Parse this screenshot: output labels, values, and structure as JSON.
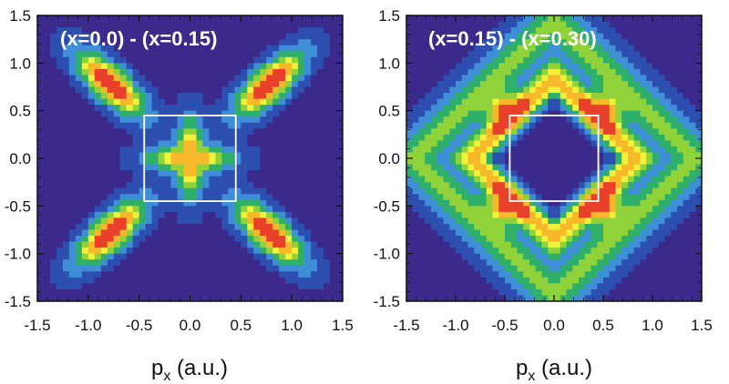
{
  "chart_data": [
    {
      "type": "heatmap",
      "panel_label": "(x=0.0) - (x=0.15)",
      "xlabel": "p_x (a.u.)",
      "xlabel_main": "p",
      "xlabel_sub": "x",
      "xlabel_unit": " (a.u.)",
      "ylabel": "",
      "xlim": [
        -1.5,
        1.5
      ],
      "ylim": [
        -1.5,
        1.5
      ],
      "x_ticks": [
        "-1.5",
        "-1.0",
        "-0.5",
        "0.0",
        "0.5",
        "1.0",
        "1.5"
      ],
      "y_ticks": [
        "1.5",
        "1.0",
        "0.5",
        "0.0",
        "-0.5",
        "-1.0",
        "-1.5"
      ],
      "tick_values": [
        -1.5,
        -1.0,
        -0.5,
        0.0,
        0.5,
        1.0,
        1.5
      ],
      "colormap": [
        "#3b2a8c",
        "#2d4fb0",
        "#3f8fd8",
        "#2fb06a",
        "#8fd23a",
        "#f2f23a",
        "#f7b82a",
        "#e8402a"
      ],
      "square_box": [
        -0.45,
        0.45,
        -0.45,
        0.45
      ],
      "features": [
        {
          "type": "lobe",
          "x": 0.78,
          "y": 0.78,
          "intensity": 0.95
        },
        {
          "type": "lobe",
          "x": -0.78,
          "y": 0.78,
          "intensity": 0.95
        },
        {
          "type": "lobe",
          "x": 0.78,
          "y": -0.78,
          "intensity": 0.95
        },
        {
          "type": "lobe",
          "x": -0.78,
          "y": -0.78,
          "intensity": 0.95
        },
        {
          "type": "center_cross",
          "x": 0.0,
          "y": 0.0,
          "intensity": 0.8
        }
      ]
    },
    {
      "type": "heatmap",
      "panel_label": "(x=0.15) - (x=0.30)",
      "xlabel": "p_x (a.u.)",
      "xlabel_main": "p",
      "xlabel_sub": "x",
      "xlabel_unit": " (a.u.)",
      "ylabel": "",
      "xlim": [
        -1.5,
        1.5
      ],
      "ylim": [
        -1.5,
        1.5
      ],
      "x_ticks": [
        "-1.5",
        "-1.0",
        "-0.5",
        "0.0",
        "0.5",
        "1.0",
        "1.5"
      ],
      "y_ticks": [
        "1.5",
        "1.0",
        "0.5",
        "0.0",
        "-0.5",
        "-1.0",
        "-1.5"
      ],
      "tick_values": [
        -1.5,
        -1.0,
        -0.5,
        0.0,
        0.5,
        1.0,
        1.5
      ],
      "colormap": [
        "#3b2a8c",
        "#2d4fb0",
        "#3f8fd8",
        "#2fb06a",
        "#8fd23a",
        "#f2f23a",
        "#f7b82a",
        "#e8402a"
      ],
      "square_box": [
        -0.45,
        0.45,
        -0.45,
        0.45
      ],
      "features": [
        {
          "type": "diamond_ring",
          "x": 0.0,
          "y": 0.0,
          "radius": 0.85,
          "intensity": 0.75
        },
        {
          "type": "hotspot",
          "x": 0.5,
          "y": 0.5,
          "intensity": 0.98
        },
        {
          "type": "hotspot",
          "x": -0.5,
          "y": 0.5,
          "intensity": 0.98
        },
        {
          "type": "hotspot",
          "x": 0.5,
          "y": -0.5,
          "intensity": 0.98
        },
        {
          "type": "hotspot",
          "x": -0.5,
          "y": -0.5,
          "intensity": 0.98
        },
        {
          "type": "outer_band",
          "x": 0.0,
          "y": 0.0,
          "radius": 1.45,
          "intensity": 0.45
        }
      ]
    }
  ]
}
